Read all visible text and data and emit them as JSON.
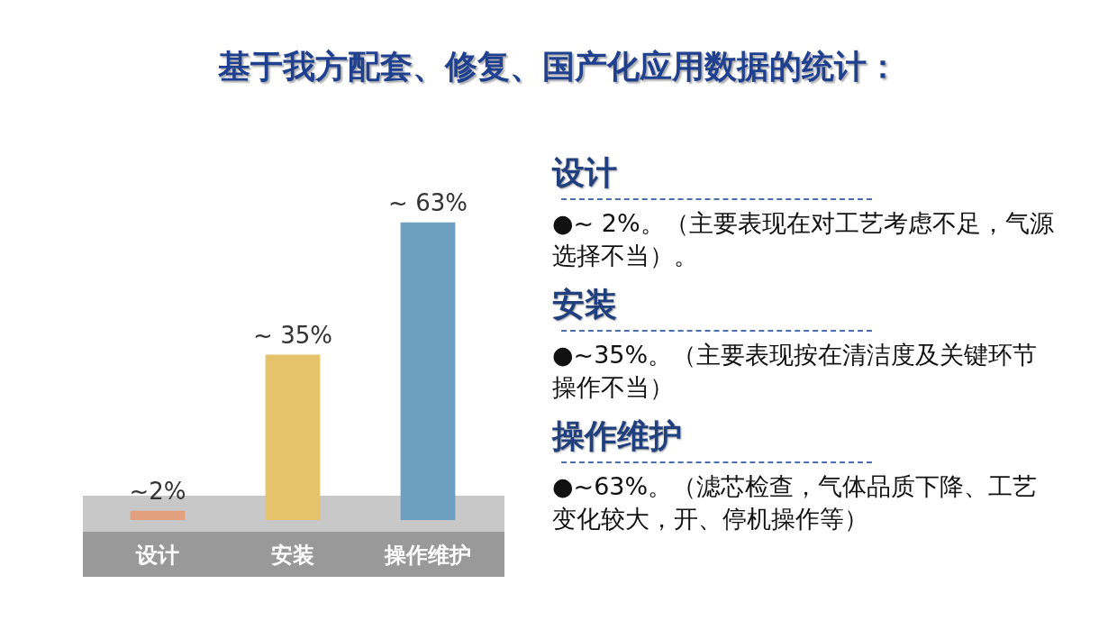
{
  "chart_data": {
    "type": "bar",
    "title": "基于我方配套、修复、国产化应用数据的统计：",
    "categories": [
      "设计",
      "安装",
      "操作维护"
    ],
    "values": [
      2,
      35,
      63
    ],
    "colors": [
      "#e2a07e",
      "#e6c26a",
      "#6f9fc0"
    ],
    "value_labels": [
      "~2%",
      "~ 35%",
      "~ 63%"
    ],
    "annotations": [
      "设计",
      "●~ 2%。（主要表现在对工艺考虑不足，气源选择不当）。",
      "安装",
      "●~35%。（主要表现按在清洁度及关键环节操作不当）",
      "操作维护",
      "●~63%。（滤芯检查，气体品质下降、工艺变化较大，开、停机操作等）"
    ]
  }
}
